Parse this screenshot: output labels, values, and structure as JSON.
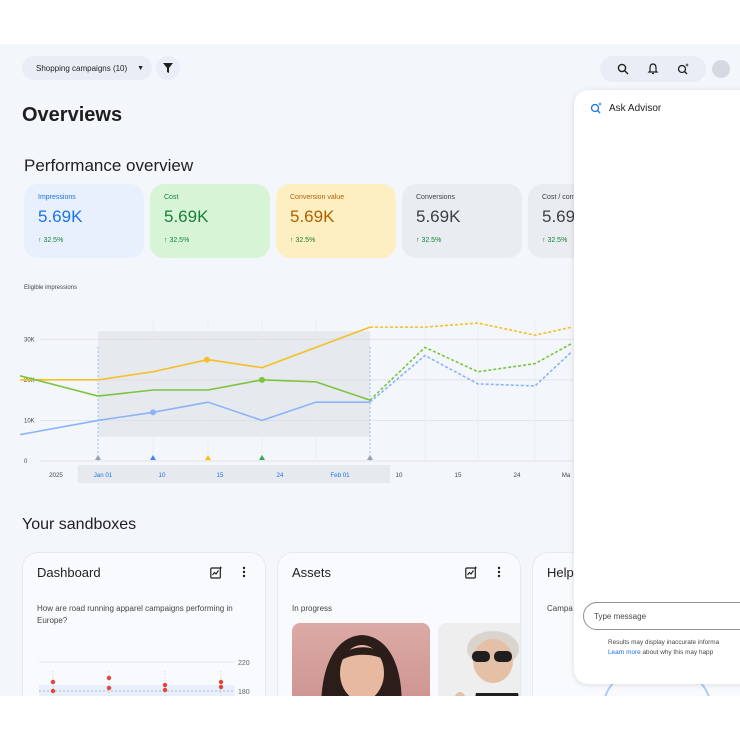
{
  "toolbar": {
    "campaign_filter": "Shopping campaigns (10)"
  },
  "page": {
    "title": "Overviews"
  },
  "performance": {
    "title": "Performance overview",
    "cards": [
      {
        "label": "Impressions",
        "value": "5.69K",
        "delta": "↑ 32.5%"
      },
      {
        "label": "Cost",
        "value": "5.69K",
        "delta": "↑ 32.5%"
      },
      {
        "label": "Conversion value",
        "value": "5.69K",
        "delta": "↑ 32.5%"
      },
      {
        "label": "Conversions",
        "value": "5.69K",
        "delta": "↑ 32.5%"
      },
      {
        "label": "Cost / conv.",
        "value": "5.69",
        "delta": "↑ 32.5%"
      }
    ]
  },
  "chart_data": {
    "type": "line",
    "ylabel": "Eligible impressions",
    "y_ticks": [
      "0",
      "10K",
      "20K",
      "30K"
    ],
    "ylim": [
      0,
      35000
    ],
    "x_ticks": [
      "2025",
      "Jan 01",
      "10",
      "15",
      "24",
      "Feb 01",
      "10",
      "15",
      "24",
      "Ma"
    ],
    "series": [
      {
        "color": "#f6bf26",
        "values": [
          20000,
          20000,
          22000,
          25000,
          23000,
          28000,
          33000,
          33000,
          34000,
          31000,
          33000
        ]
      },
      {
        "color": "#7cc33e",
        "values": [
          21000,
          16000,
          17500,
          17500,
          20000,
          19500,
          15000,
          28000,
          22000,
          24000,
          29000
        ]
      },
      {
        "color": "#8ab4f8",
        "values": [
          6500,
          10000,
          12000,
          14500,
          10000,
          14500,
          14500,
          26000,
          19000,
          18500,
          27000
        ]
      }
    ],
    "grid": true
  },
  "sandboxes": {
    "title": "Your sandboxes",
    "dashboard": {
      "title": "Dashboard",
      "question": "How are road running apparel campaigns performing in Europe?",
      "ticks": [
        "220",
        "180"
      ]
    },
    "assets": {
      "title": "Assets",
      "status": "In progress"
    },
    "help": {
      "title": "Help",
      "text": "Campa"
    }
  },
  "advisor": {
    "title": "Ask Advisor",
    "placeholder": "Type message",
    "disclaimer_1": "Results may display inaccurate informa",
    "learn_more": "Learn more",
    "disclaimer_2": " about why this may happ"
  }
}
